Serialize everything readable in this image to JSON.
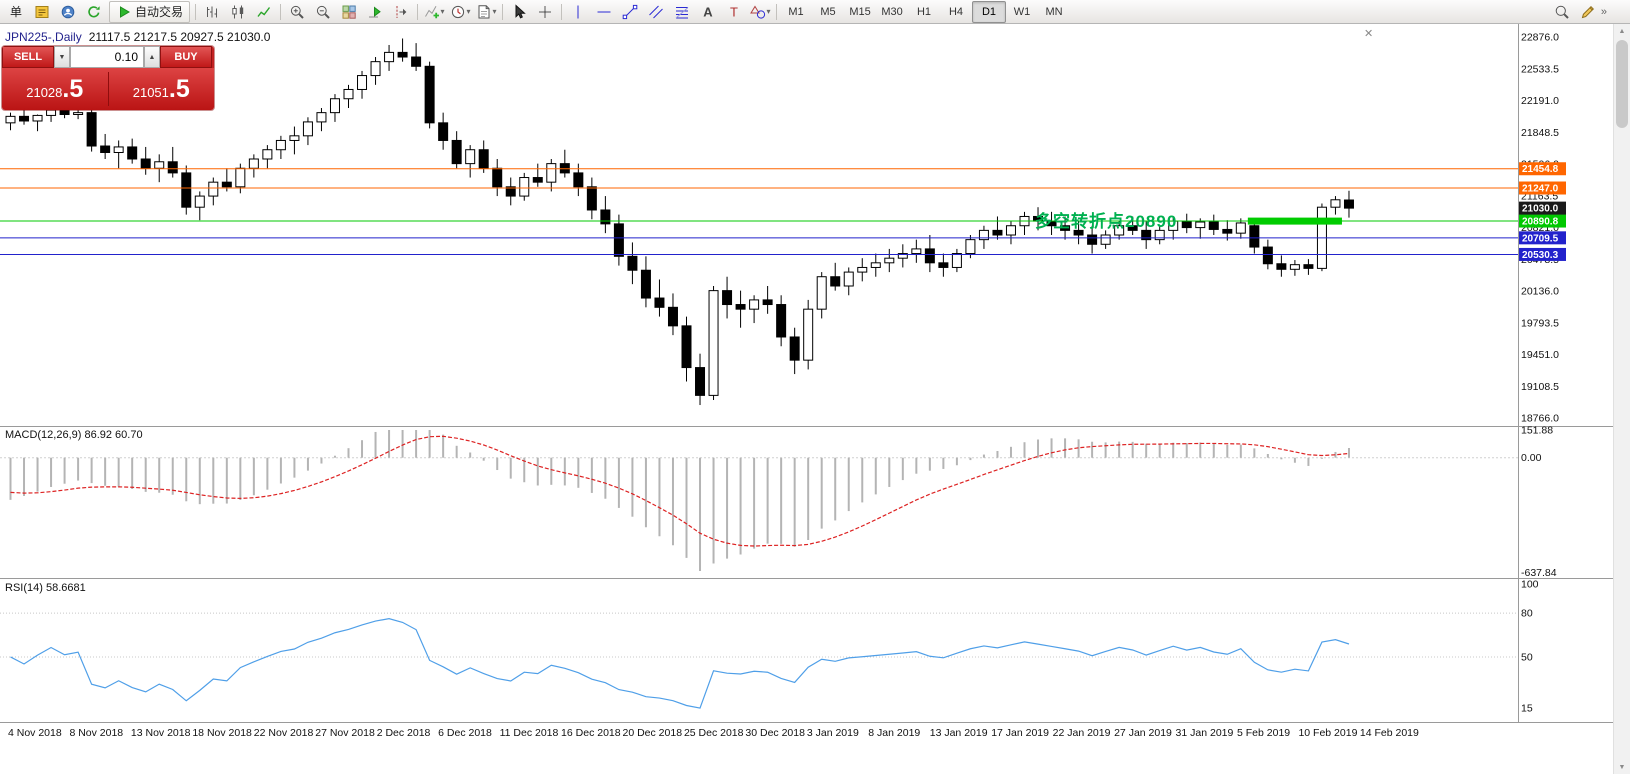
{
  "toolbar": {
    "new_order_label": "单",
    "autotrade_label": "自动交易",
    "overflow_glyph": "»",
    "icon_groups": [
      [
        {
          "name": "metaeditor-icon",
          "type": "metaeditor"
        },
        {
          "name": "profiles-icon",
          "type": "profiles"
        },
        {
          "name": "refresh-icon",
          "type": "refresh"
        }
      ],
      [
        {
          "name": "bar-chart-icon",
          "type": "bars"
        },
        {
          "name": "candlestick-chart-icon",
          "type": "candles"
        },
        {
          "name": "line-chart-icon",
          "type": "linechart"
        }
      ],
      [
        {
          "name": "zoom-in-icon",
          "type": "zoomin"
        },
        {
          "name": "zoom-out-icon",
          "type": "zoomout"
        },
        {
          "name": "tile-windows-icon",
          "type": "tile"
        },
        {
          "name": "auto-scroll-icon",
          "type": "autoscroll"
        },
        {
          "name": "chart-shift-icon",
          "type": "chartshift"
        }
      ],
      [
        {
          "name": "indicators-icon",
          "type": "indicators",
          "dropdown": true
        },
        {
          "name": "periods-icon",
          "type": "periods",
          "dropdown": true
        },
        {
          "name": "templates-icon",
          "type": "templates",
          "dropdown": true
        }
      ],
      [
        {
          "name": "cursor-icon",
          "type": "cursor"
        },
        {
          "name": "crosshair-icon",
          "type": "crosshair"
        }
      ],
      [
        {
          "name": "vertical-line-icon",
          "type": "vline"
        },
        {
          "name": "horizontal-line-icon",
          "type": "hline"
        },
        {
          "name": "trendline-icon",
          "type": "tline"
        },
        {
          "name": "equidistant-channel-icon",
          "type": "channel"
        },
        {
          "name": "fibonacci-icon",
          "type": "fibo"
        },
        {
          "name": "text-icon",
          "type": "texta"
        },
        {
          "name": "text-label-icon",
          "type": "labelt"
        },
        {
          "name": "arrows-icon",
          "type": "shapes",
          "dropdown": true
        }
      ]
    ],
    "timeframes": [
      "M1",
      "M5",
      "M15",
      "M30",
      "H1",
      "H4",
      "D1",
      "W1",
      "MN"
    ],
    "active_timeframe": "D1",
    "right_icons": [
      {
        "name": "search-icon",
        "type": "search"
      },
      {
        "name": "quick-edit-icon",
        "type": "edit"
      }
    ]
  },
  "chart": {
    "title_symbol": "JPN225-,Daily",
    "title_ohlc": "21117.5 21217.5 20927.5 21030.0",
    "close_glyph": "✕",
    "annotation": {
      "text": "多空转折点20890",
      "color": "#00b050"
    }
  },
  "trade_panel": {
    "sell_label": "SELL",
    "buy_label": "BUY",
    "lot": "0.10",
    "down_glyph": "▼",
    "up_glyph": "▲",
    "sell_price_base": "21028",
    "sell_price_big": ".5",
    "buy_price_base": "21051",
    "buy_price_big": ".5"
  },
  "indicator_labels": {
    "macd": "MACD(12,26,9) 86.92 60.70",
    "rsi": "RSI(14) 58.6681"
  },
  "scrollbar": {
    "up_glyph": "▲",
    "down_glyph": "▼"
  },
  "chart_data": {
    "type": "candlestick",
    "symbol": "JPN225-",
    "timeframe": "Daily",
    "ohlc_current": {
      "open": 21117.5,
      "high": 21217.5,
      "low": 20927.5,
      "close": 21030.0
    },
    "current_price": 21030.0,
    "price_range": [
      18766.0,
      22876.0
    ],
    "price_axis_labels": [
      22876.0,
      22533.5,
      22191.0,
      21848.5,
      21506.0,
      21163.5,
      20821.0,
      20478.5,
      20136.0,
      19793.5,
      19451.0,
      19108.5,
      18766.0
    ],
    "hlines": [
      {
        "price": 21454.8,
        "color": "#ff6600"
      },
      {
        "price": 21247.0,
        "color": "#ff6600"
      },
      {
        "price": 20890.8,
        "color": "#00c800"
      },
      {
        "price": 20709.5,
        "color": "#2222cc"
      },
      {
        "price": 20530.3,
        "color": "#2222cc"
      }
    ],
    "green_segment": {
      "price": 20890,
      "from_index": 92,
      "to_index": 98,
      "color": "#00cc00"
    },
    "x_axis_labels": [
      "4 Nov 2018",
      "8 Nov 2018",
      "13 Nov 2018",
      "18 Nov 2018",
      "22 Nov 2018",
      "27 Nov 2018",
      "2 Dec 2018",
      "6 Dec 2018",
      "11 Dec 2018",
      "16 Dec 2018",
      "20 Dec 2018",
      "25 Dec 2018",
      "30 Dec 2018",
      "3 Jan 2019",
      "8 Jan 2019",
      "13 Jan 2019",
      "17 Jan 2019",
      "22 Jan 2019",
      "27 Jan 2019",
      "31 Jan 2019",
      "5 Feb 2019",
      "10 Feb 2019",
      "14 Feb 2019"
    ],
    "macd_axis": [
      151.88,
      0,
      -637.84
    ],
    "rsi_axis": [
      100,
      80,
      50,
      15
    ],
    "rsi_levels": [
      80,
      50
    ],
    "candles": [
      [
        21950,
        22060,
        21870,
        22020
      ],
      [
        22020,
        22100,
        21930,
        21970
      ],
      [
        21970,
        22040,
        21860,
        22030
      ],
      [
        22030,
        22130,
        21960,
        22090
      ],
      [
        22090,
        22190,
        22000,
        22040
      ],
      [
        22040,
        22170,
        21990,
        22060
      ],
      [
        22060,
        22120,
        21640,
        21700
      ],
      [
        21700,
        21830,
        21560,
        21630
      ],
      [
        21630,
        21760,
        21460,
        21690
      ],
      [
        21690,
        21780,
        21510,
        21560
      ],
      [
        21560,
        21690,
        21390,
        21460
      ],
      [
        21460,
        21610,
        21310,
        21530
      ],
      [
        21530,
        21690,
        21360,
        21410
      ],
      [
        21410,
        21490,
        20960,
        21040
      ],
      [
        21040,
        21210,
        20900,
        21160
      ],
      [
        21160,
        21360,
        21060,
        21310
      ],
      [
        21310,
        21460,
        21210,
        21260
      ],
      [
        21260,
        21510,
        21190,
        21460
      ],
      [
        21460,
        21610,
        21360,
        21560
      ],
      [
        21560,
        21710,
        21460,
        21660
      ],
      [
        21660,
        21810,
        21560,
        21760
      ],
      [
        21760,
        21910,
        21610,
        21810
      ],
      [
        21810,
        22010,
        21710,
        21960
      ],
      [
        21960,
        22110,
        21860,
        22060
      ],
      [
        22060,
        22260,
        21960,
        22210
      ],
      [
        22210,
        22360,
        22110,
        22310
      ],
      [
        22310,
        22510,
        22210,
        22460
      ],
      [
        22460,
        22660,
        22360,
        22610
      ],
      [
        22610,
        22790,
        22510,
        22710
      ],
      [
        22710,
        22860,
        22610,
        22660
      ],
      [
        22660,
        22810,
        22510,
        22560
      ],
      [
        22560,
        22610,
        21890,
        21950
      ],
      [
        21950,
        22060,
        21660,
        21760
      ],
      [
        21760,
        21860,
        21460,
        21510
      ],
      [
        21510,
        21710,
        21360,
        21660
      ],
      [
        21660,
        21760,
        21410,
        21460
      ],
      [
        21460,
        21560,
        21160,
        21260
      ],
      [
        21260,
        21360,
        21060,
        21160
      ],
      [
        21160,
        21410,
        21110,
        21360
      ],
      [
        21360,
        21510,
        21260,
        21310
      ],
      [
        21310,
        21560,
        21210,
        21510
      ],
      [
        21510,
        21660,
        21360,
        21410
      ],
      [
        21410,
        21510,
        21160,
        21260
      ],
      [
        21260,
        21360,
        20910,
        21010
      ],
      [
        21010,
        21160,
        20760,
        20860
      ],
      [
        20860,
        20960,
        20410,
        20510
      ],
      [
        20510,
        20660,
        20210,
        20360
      ],
      [
        20360,
        20510,
        19960,
        20060
      ],
      [
        20060,
        20260,
        19860,
        19960
      ],
      [
        19960,
        20110,
        19660,
        19760
      ],
      [
        19760,
        19860,
        19160,
        19310
      ],
      [
        19310,
        19460,
        18906,
        19010
      ],
      [
        19010,
        20190,
        18960,
        20140
      ],
      [
        20140,
        20290,
        19840,
        19990
      ],
      [
        19990,
        20140,
        19740,
        19940
      ],
      [
        19940,
        20090,
        19790,
        20040
      ],
      [
        20040,
        20190,
        19890,
        19990
      ],
      [
        19990,
        20090,
        19540,
        19640
      ],
      [
        19640,
        19740,
        19240,
        19390
      ],
      [
        19390,
        20040,
        19290,
        19940
      ],
      [
        19940,
        20340,
        19840,
        20290
      ],
      [
        20290,
        20440,
        20140,
        20190
      ],
      [
        20190,
        20390,
        20090,
        20340
      ],
      [
        20340,
        20490,
        20240,
        20390
      ],
      [
        20390,
        20540,
        20290,
        20440
      ],
      [
        20440,
        20590,
        20340,
        20490
      ],
      [
        20490,
        20640,
        20390,
        20540
      ],
      [
        20540,
        20690,
        20440,
        20590
      ],
      [
        20590,
        20740,
        20340,
        20440
      ],
      [
        20440,
        20540,
        20290,
        20390
      ],
      [
        20390,
        20590,
        20340,
        20540
      ],
      [
        20540,
        20740,
        20490,
        20690
      ],
      [
        20690,
        20840,
        20590,
        20790
      ],
      [
        20790,
        20940,
        20690,
        20740
      ],
      [
        20740,
        20890,
        20640,
        20840
      ],
      [
        20840,
        20990,
        20740,
        20940
      ],
      [
        20940,
        21040,
        20790,
        20890
      ],
      [
        20890,
        20990,
        20740,
        20840
      ],
      [
        20840,
        20940,
        20690,
        20790
      ],
      [
        20790,
        20890,
        20640,
        20740
      ],
      [
        20740,
        20840,
        20540,
        20640
      ],
      [
        20640,
        20790,
        20590,
        20740
      ],
      [
        20740,
        20890,
        20690,
        20840
      ],
      [
        20840,
        20940,
        20740,
        20790
      ],
      [
        20790,
        20890,
        20590,
        20690
      ],
      [
        20690,
        20840,
        20640,
        20790
      ],
      [
        20790,
        20940,
        20690,
        20890
      ],
      [
        20890,
        20970,
        20760,
        20820
      ],
      [
        20820,
        20920,
        20700,
        20880
      ],
      [
        20880,
        20960,
        20740,
        20800
      ],
      [
        20800,
        20900,
        20680,
        20760
      ],
      [
        20760,
        20920,
        20700,
        20870
      ],
      [
        20840,
        20890,
        20540,
        20610
      ],
      [
        20610,
        20690,
        20370,
        20430
      ],
      [
        20430,
        20520,
        20290,
        20370
      ],
      [
        20370,
        20470,
        20300,
        20420
      ],
      [
        20420,
        20480,
        20310,
        20380
      ],
      [
        20380,
        21080,
        20350,
        21040
      ],
      [
        21040,
        21160,
        20960,
        21120
      ],
      [
        21117.5,
        21217.5,
        20927.5,
        21030
      ]
    ]
  }
}
